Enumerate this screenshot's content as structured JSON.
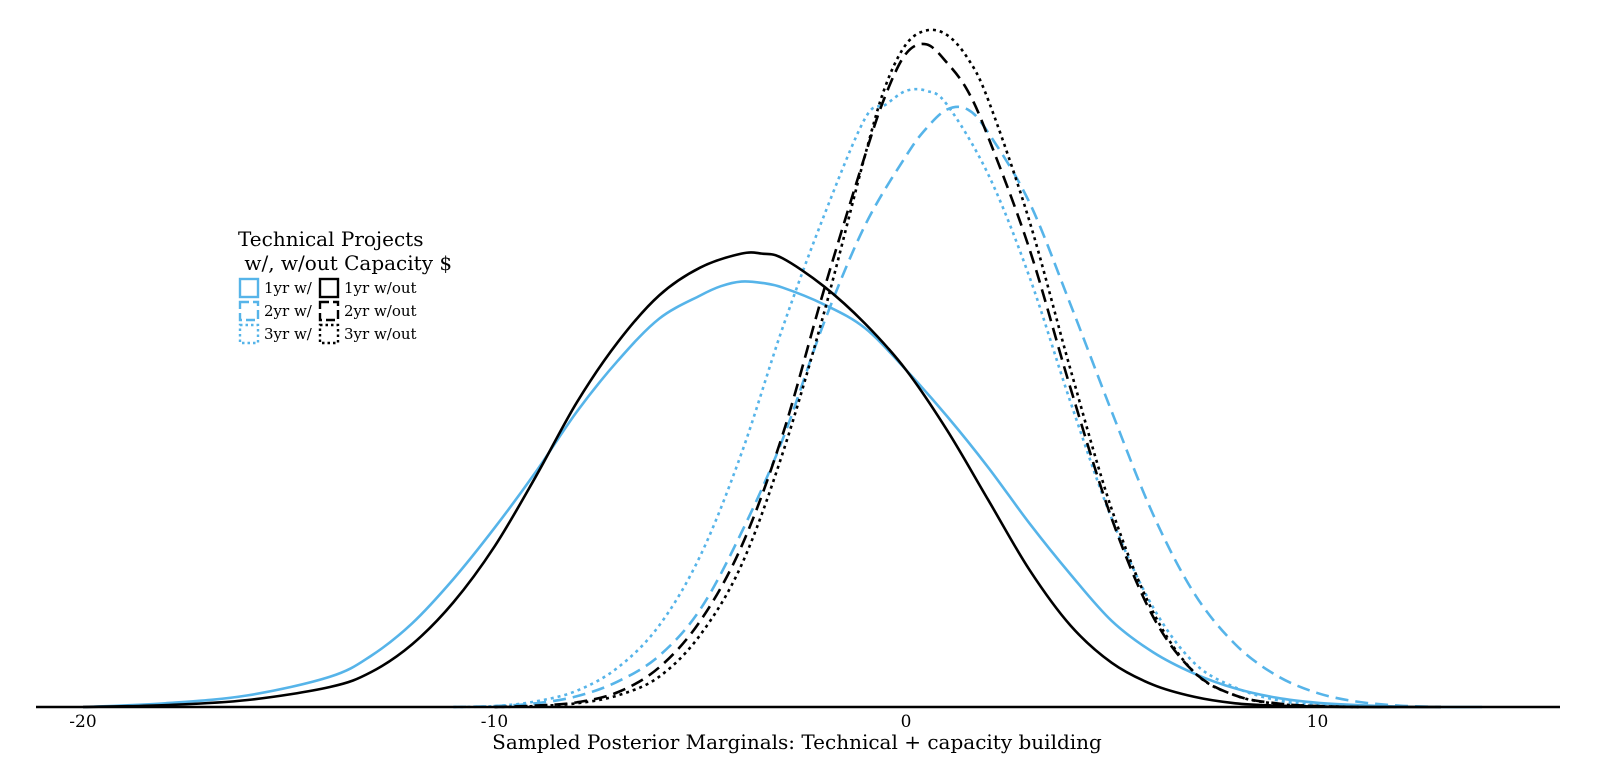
{
  "chart_data": {
    "type": "line",
    "xlabel": "Sampled Posterior Marginals: Technical + capacity building",
    "ylabel": "",
    "xlim": [
      -21,
      16
    ],
    "ylim": [
      0,
      0.146
    ],
    "x_ticks": [
      -20,
      -10,
      0,
      10
    ],
    "x_tick_labels": [
      "-20",
      "-10",
      "0",
      "10"
    ],
    "grid": false,
    "legend": {
      "title_lines": [
        "Technical Projects",
        " w/, w/out Capacity $"
      ],
      "placement": "center-left",
      "entries": [
        "1yr w/",
        "2yr w/",
        "3yr w/",
        "1yr w/out",
        "2yr w/out",
        "3yr w/out"
      ]
    },
    "colors": {
      "with": "#56b4e9",
      "without": "#000000"
    },
    "series": [
      {
        "name": "1yr w/",
        "color": "#56b4e9",
        "dash": "solid",
        "x": [
          -20,
          -18,
          -16,
          -14,
          -13,
          -12,
          -11,
          -10,
          -9,
          -8,
          -7,
          -6,
          -5,
          -4.5,
          -4,
          -3.5,
          -3,
          -2,
          -1,
          0,
          1,
          2,
          3,
          4,
          5,
          6,
          7,
          8,
          9,
          10,
          11,
          12,
          13,
          14
        ],
        "y": [
          0.0,
          0.0008,
          0.0025,
          0.0065,
          0.011,
          0.018,
          0.0275,
          0.0385,
          0.0505,
          0.0635,
          0.0745,
          0.0835,
          0.0885,
          0.0905,
          0.0915,
          0.0912,
          0.0902,
          0.0866,
          0.0815,
          0.0725,
          0.0625,
          0.0515,
          0.0395,
          0.0285,
          0.0185,
          0.0118,
          0.0072,
          0.004,
          0.002,
          0.0009,
          0.0004,
          0.0001,
          0.0,
          0.0
        ]
      },
      {
        "name": "2yr w/",
        "color": "#56b4e9",
        "dash": "dash",
        "x": [
          -11,
          -10,
          -9,
          -8,
          -7,
          -6,
          -5,
          -4,
          -3,
          -2,
          -1,
          0,
          0.5,
          1,
          1.5,
          2,
          3,
          4,
          5,
          6,
          7,
          8,
          9,
          10,
          11,
          12,
          13
        ],
        "y": [
          0.0,
          0.0002,
          0.0008,
          0.0023,
          0.0055,
          0.011,
          0.021,
          0.0375,
          0.0575,
          0.0825,
          0.1035,
          0.1185,
          0.1245,
          0.1285,
          0.1285,
          0.1235,
          0.1085,
          0.0865,
          0.0635,
          0.0415,
          0.0245,
          0.0135,
          0.0068,
          0.003,
          0.0011,
          0.0003,
          0.0
        ]
      },
      {
        "name": "3yr w/",
        "color": "#56b4e9",
        "dash": "dot",
        "x": [
          -11,
          -10,
          -9,
          -8,
          -7,
          -6,
          -5,
          -4,
          -3,
          -2,
          -1,
          -0.5,
          0,
          0.5,
          1,
          2,
          3,
          4,
          5,
          6,
          7,
          8,
          9,
          10,
          11,
          12
        ],
        "y": [
          0.0,
          0.0002,
          0.0012,
          0.0035,
          0.0085,
          0.0175,
          0.0325,
          0.0545,
          0.0815,
          0.1055,
          0.1265,
          0.1295,
          0.1325,
          0.1325,
          0.1295,
          0.1145,
          0.0925,
          0.0655,
          0.0405,
          0.0215,
          0.0095,
          0.0042,
          0.0015,
          0.0004,
          0.0001,
          0.0
        ]
      },
      {
        "name": "1yr w/out",
        "color": "#000000",
        "dash": "solid",
        "x": [
          -20,
          -18,
          -16,
          -14,
          -13,
          -12,
          -11,
          -10,
          -9,
          -8,
          -7,
          -6,
          -5,
          -4,
          -3.5,
          -3,
          -2,
          -1,
          0,
          1,
          2,
          3,
          4,
          5,
          6,
          7,
          8,
          9,
          10,
          11,
          12,
          13
        ],
        "y": [
          0.0,
          0.0004,
          0.0015,
          0.0043,
          0.0075,
          0.0135,
          0.0225,
          0.0345,
          0.0495,
          0.0655,
          0.0785,
          0.0885,
          0.0945,
          0.0975,
          0.0975,
          0.0965,
          0.0905,
          0.0825,
          0.0725,
          0.0595,
          0.0445,
          0.0295,
          0.0175,
          0.0095,
          0.0048,
          0.0022,
          0.0008,
          0.0003,
          0.0001,
          0.0,
          0.0,
          0.0
        ]
      },
      {
        "name": "2yr w/out",
        "color": "#000000",
        "dash": "dash",
        "x": [
          -10,
          -9,
          -8,
          -7,
          -6,
          -5,
          -4,
          -3,
          -2,
          -1,
          -0.5,
          0,
          0.5,
          1,
          1.5,
          2,
          3,
          4,
          5,
          6,
          7,
          8,
          9,
          10,
          11
        ],
        "y": [
          0.0,
          0.0003,
          0.001,
          0.0032,
          0.0085,
          0.0185,
          0.0345,
          0.0585,
          0.0895,
          0.1185,
          0.1315,
          0.1405,
          0.1425,
          0.1385,
          0.1325,
          0.1225,
          0.0985,
          0.0685,
          0.0405,
          0.0195,
          0.0075,
          0.0025,
          0.0008,
          0.0002,
          0.0
        ]
      },
      {
        "name": "3yr w/out",
        "color": "#000000",
        "dash": "dot",
        "x": [
          -10,
          -9,
          -8,
          -7,
          -6,
          -5,
          -4,
          -3,
          -2,
          -1,
          -0.5,
          0,
          0.5,
          1,
          1.5,
          2,
          3,
          4,
          5,
          6,
          7,
          8,
          9,
          10,
          11
        ],
        "y": [
          0.0,
          0.0002,
          0.0008,
          0.0025,
          0.0065,
          0.0155,
          0.0305,
          0.0545,
          0.0845,
          0.1185,
          0.1335,
          0.1425,
          0.1455,
          0.1445,
          0.1395,
          0.1305,
          0.1045,
          0.0725,
          0.0425,
          0.0205,
          0.0075,
          0.0025,
          0.0007,
          0.0002,
          0.0
        ]
      }
    ]
  }
}
